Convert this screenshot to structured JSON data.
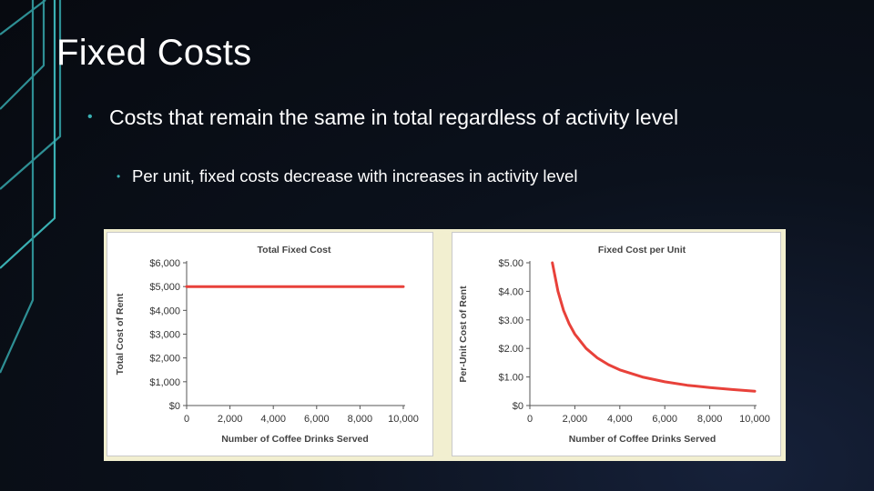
{
  "slide": {
    "title": "Fixed Costs",
    "bullet_1": "Costs that remain the same in total regardless of activity level",
    "bullet_2": "Per unit, fixed costs decrease with increases in activity level",
    "bullet_glyph": "•",
    "accent_color": "#3ab0b3"
  },
  "chart_data": [
    {
      "type": "line",
      "title": "Total Fixed Cost",
      "xlabel": "Number of Coffee Drinks Served",
      "ylabel": "Total Cost of Rent",
      "x_ticks": [
        "0",
        "2,000",
        "4,000",
        "6,000",
        "8,000",
        "10,000"
      ],
      "y_ticks": [
        "$0",
        "$1,000",
        "$2,000",
        "$3,000",
        "$4,000",
        "$5,000",
        "$6,000"
      ],
      "xlim": [
        0,
        10000
      ],
      "ylim": [
        0,
        6000
      ],
      "series": [
        {
          "x": [
            0,
            10000
          ],
          "values": [
            5000,
            5000
          ],
          "color": "#e8413a"
        }
      ],
      "grid": false
    },
    {
      "type": "line",
      "title": "Fixed Cost per Unit",
      "xlabel": "Number of Coffee Drinks Served",
      "ylabel": "Per-Unit Cost of Rent",
      "x_ticks": [
        "0",
        "2,000",
        "4,000",
        "6,000",
        "8,000",
        "10,000"
      ],
      "y_ticks": [
        "$0",
        "$1.00",
        "$2.00",
        "$3.00",
        "$4.00",
        "$5.00"
      ],
      "xlim": [
        0,
        10000
      ],
      "ylim": [
        0,
        5
      ],
      "series": [
        {
          "x": [
            1000,
            1250,
            1500,
            1750,
            2000,
            2500,
            3000,
            3500,
            4000,
            5000,
            6000,
            7000,
            8000,
            9000,
            10000
          ],
          "values": [
            5.0,
            4.0,
            3.33,
            2.86,
            2.5,
            2.0,
            1.67,
            1.43,
            1.25,
            1.0,
            0.83,
            0.71,
            0.63,
            0.56,
            0.5
          ],
          "color": "#e8413a"
        }
      ],
      "grid": false
    }
  ]
}
